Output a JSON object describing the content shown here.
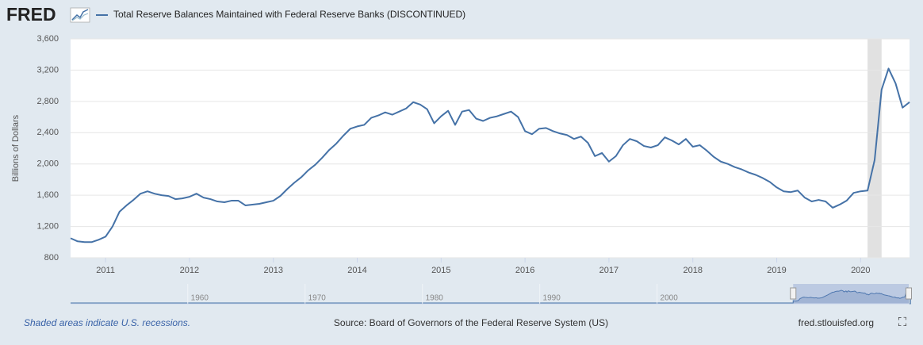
{
  "logo": "FRED",
  "chart_data": {
    "type": "line",
    "series": [
      {
        "name": "Total Reserve Balances Maintained with Federal Reserve Banks (DISCONTINUED)",
        "color": "#4572a7",
        "values": [
          1050,
          1010,
          1000,
          1000,
          1030,
          1070,
          1200,
          1390,
          1470,
          1540,
          1620,
          1650,
          1620,
          1600,
          1590,
          1550,
          1560,
          1580,
          1620,
          1570,
          1550,
          1520,
          1510,
          1530,
          1530,
          1470,
          1480,
          1490,
          1510,
          1530,
          1590,
          1680,
          1760,
          1830,
          1920,
          1990,
          2080,
          2180,
          2260,
          2360,
          2450,
          2480,
          2500,
          2590,
          2620,
          2660,
          2630,
          2670,
          2710,
          2790,
          2760,
          2700,
          2520,
          2610,
          2680,
          2500,
          2670,
          2690,
          2580,
          2550,
          2590,
          2610,
          2640,
          2670,
          2600,
          2420,
          2380,
          2450,
          2460,
          2420,
          2390,
          2370,
          2320,
          2350,
          2270,
          2100,
          2140,
          2030,
          2100,
          2240,
          2320,
          2290,
          2230,
          2210,
          2240,
          2340,
          2300,
          2250,
          2320,
          2220,
          2240,
          2170,
          2090,
          2030,
          2000,
          1960,
          1930,
          1890,
          1860,
          1820,
          1770,
          1700,
          1650,
          1640,
          1660,
          1570,
          1520,
          1540,
          1520,
          1440,
          1480,
          1530,
          1630,
          1650,
          1660,
          2050,
          2950,
          3220,
          3030,
          2720,
          2790
        ]
      }
    ],
    "x": [
      2010.583,
      2010.667,
      2010.75,
      2010.833,
      2010.917,
      2011,
      2011.083,
      2011.167,
      2011.25,
      2011.333,
      2011.417,
      2011.5,
      2011.583,
      2011.667,
      2011.75,
      2011.833,
      2011.917,
      2012,
      2012.083,
      2012.167,
      2012.25,
      2012.333,
      2012.417,
      2012.5,
      2012.583,
      2012.667,
      2012.75,
      2012.833,
      2012.917,
      2013,
      2013.083,
      2013.167,
      2013.25,
      2013.333,
      2013.417,
      2013.5,
      2013.583,
      2013.667,
      2013.75,
      2013.833,
      2013.917,
      2014,
      2014.083,
      2014.167,
      2014.25,
      2014.333,
      2014.417,
      2014.5,
      2014.583,
      2014.667,
      2014.75,
      2014.833,
      2014.917,
      2015,
      2015.083,
      2015.167,
      2015.25,
      2015.333,
      2015.417,
      2015.5,
      2015.583,
      2015.667,
      2015.75,
      2015.833,
      2015.917,
      2016,
      2016.083,
      2016.167,
      2016.25,
      2016.333,
      2016.417,
      2016.5,
      2016.583,
      2016.667,
      2016.75,
      2016.833,
      2016.917,
      2017,
      2017.083,
      2017.167,
      2017.25,
      2017.333,
      2017.417,
      2017.5,
      2017.583,
      2017.667,
      2017.75,
      2017.833,
      2017.917,
      2018,
      2018.083,
      2018.167,
      2018.25,
      2018.333,
      2018.417,
      2018.5,
      2018.583,
      2018.667,
      2018.75,
      2018.833,
      2018.917,
      2019,
      2019.083,
      2019.167,
      2019.25,
      2019.333,
      2019.417,
      2019.5,
      2019.583,
      2019.667,
      2019.75,
      2019.833,
      2019.917,
      2020,
      2020.083,
      2020.167,
      2020.25,
      2020.333,
      2020.417,
      2020.5,
      2020.583
    ],
    "xlim": [
      2010.583,
      2020.583
    ],
    "xticks": [
      2011,
      2012,
      2013,
      2014,
      2015,
      2016,
      2017,
      2018,
      2019,
      2020
    ],
    "y_label": "Billions of Dollars",
    "ylim": [
      800,
      3600
    ],
    "yticks": [
      800,
      {
        "value": 1200,
        "label": "1,200"
      },
      {
        "value": 1600,
        "label": "1,600"
      },
      {
        "value": 2000,
        "label": "2,000"
      },
      {
        "value": 2400,
        "label": "2,400"
      },
      {
        "value": 2800,
        "label": "2,800"
      },
      {
        "value": 3200,
        "label": "3,200"
      },
      {
        "value": 3600,
        "label": "3,600"
      }
    ],
    "grid": true,
    "recessions": [
      {
        "start": 2020.083,
        "end": 2020.25
      }
    ],
    "recession_color": "#e1e1e1",
    "navigator": {
      "xlim": [
        1949,
        2020.5
      ],
      "xticks": [
        1960,
        1970,
        1980,
        1990,
        2000
      ]
    },
    "recession_note": "Shaded areas indicate U.S. recessions.",
    "source": "Source: Board of Governors of the Federal Reserve System (US)",
    "site": "fred.stlouisfed.org"
  }
}
